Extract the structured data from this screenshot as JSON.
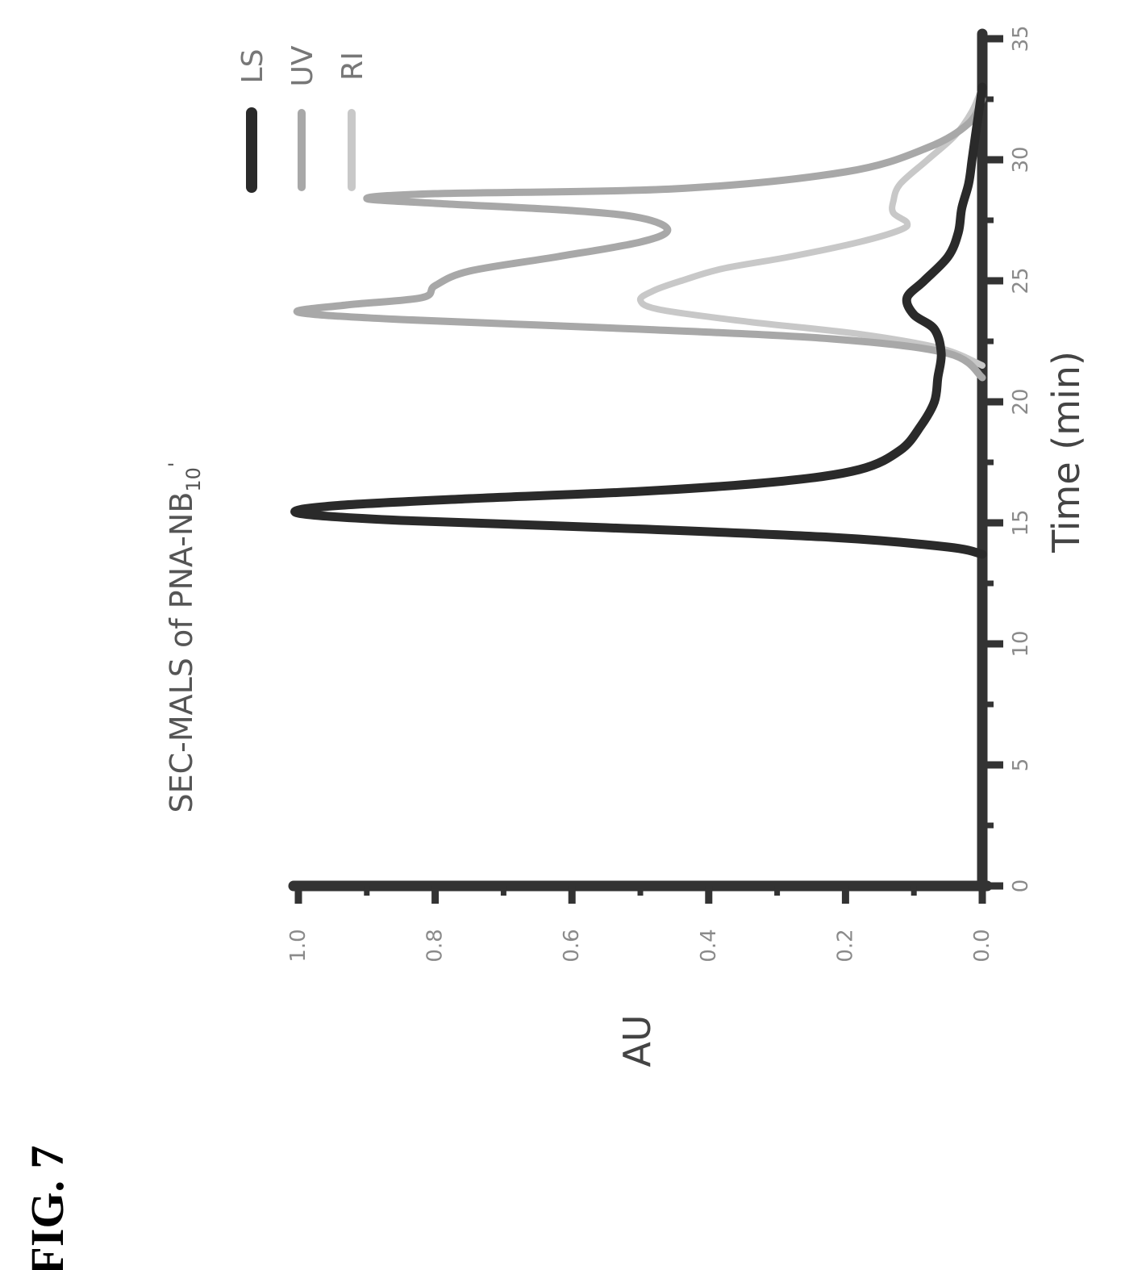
{
  "figure_label": "FIG. 7",
  "chart_data": {
    "type": "line",
    "title": "SEC-MALS of PNA-NB",
    "title_suffix": "10",
    "title_suffix_superscript": "'",
    "xlabel": "Time (min)",
    "ylabel": "AU",
    "xlim": [
      0,
      35
    ],
    "ylim": [
      0,
      1.0
    ],
    "x_ticks": [
      0,
      5,
      10,
      15,
      20,
      25,
      30,
      35
    ],
    "x_tick_labels": [
      "0",
      "5",
      "10",
      "15",
      "20",
      "25",
      "30",
      "35"
    ],
    "y_ticks": [
      0,
      0.2,
      0.4,
      0.6,
      0.8,
      1.0
    ],
    "y_tick_labels": [
      "0.0",
      "0.2",
      "0.4",
      "0.6",
      "0.8",
      "1.0"
    ],
    "orientation": "rotated-90-ccw",
    "legend_placement": "top-right",
    "series": [
      {
        "name": "LS",
        "color": "#2a2a2a",
        "x": [
          13.7,
          14.0,
          14.4,
          14.8,
          15.1,
          15.4,
          15.7,
          16.0,
          16.3,
          16.7,
          17.2,
          18.0,
          19.0,
          20.0,
          21.0,
          22.0,
          23.0,
          23.6,
          24.3,
          25.0,
          26.0,
          27.0,
          28.0,
          29.0,
          30.0,
          31.0,
          32.0,
          33.0
        ],
        "y": [
          0.0,
          0.05,
          0.22,
          0.55,
          0.85,
          1.0,
          0.95,
          0.75,
          0.5,
          0.3,
          0.18,
          0.12,
          0.09,
          0.07,
          0.065,
          0.06,
          0.07,
          0.1,
          0.11,
          0.085,
          0.05,
          0.035,
          0.03,
          0.02,
          0.015,
          0.01,
          0.005,
          0.0
        ]
      },
      {
        "name": "UV",
        "color": "#a8a8a8",
        "x": [
          21.0,
          22.0,
          22.6,
          23.0,
          23.4,
          23.7,
          24.0,
          24.3,
          24.8,
          25.4,
          26.0,
          26.6,
          27.1,
          27.6,
          27.9,
          28.2,
          28.4,
          28.6,
          28.8,
          29.5,
          30.5,
          31.5,
          32.5
        ],
        "y": [
          0.0,
          0.05,
          0.22,
          0.5,
          0.85,
          1.0,
          0.93,
          0.82,
          0.8,
          0.75,
          0.62,
          0.5,
          0.46,
          0.5,
          0.6,
          0.8,
          0.9,
          0.8,
          0.45,
          0.2,
          0.08,
          0.02,
          0.0
        ]
      },
      {
        "name": "RI",
        "color": "#c8c8c8",
        "x": [
          21.5,
          22.2,
          22.8,
          23.3,
          23.8,
          24.2,
          24.6,
          25.0,
          25.5,
          26.0,
          26.6,
          27.1,
          27.4,
          27.8,
          28.3,
          29.0,
          30.0,
          31.0,
          32.0,
          33.0
        ],
        "y": [
          0.0,
          0.06,
          0.18,
          0.34,
          0.47,
          0.5,
          0.48,
          0.44,
          0.38,
          0.28,
          0.18,
          0.12,
          0.11,
          0.13,
          0.13,
          0.12,
          0.08,
          0.04,
          0.015,
          0.0
        ]
      }
    ]
  }
}
